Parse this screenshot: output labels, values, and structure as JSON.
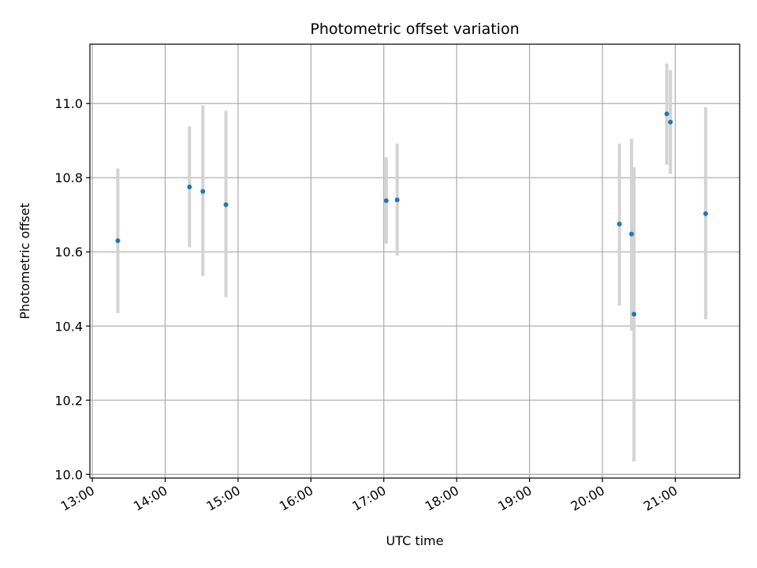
{
  "chart_data": {
    "type": "scatter",
    "title": "Photometric offset variation",
    "xlabel": "UTC time",
    "ylabel": "Photometric offset",
    "x_ticks": [
      "13:00",
      "14:00",
      "15:00",
      "16:00",
      "17:00",
      "18:00",
      "19:00",
      "20:00",
      "21:00"
    ],
    "y_ticks": [
      "10.0",
      "10.2",
      "10.4",
      "10.6",
      "10.8",
      "11.0"
    ],
    "xlim": [
      "12:58",
      "21:53"
    ],
    "ylim": [
      9.99,
      11.16
    ],
    "grid": true,
    "point_color": "#1f77b4",
    "errorbar_color": "#d3d3d3",
    "grid_color": "#b0b0b0",
    "points": [
      {
        "time": "13:21",
        "y": 10.63,
        "err_low": 10.435,
        "err_high": 10.825
      },
      {
        "time": "14:20",
        "y": 10.775,
        "err_low": 10.612,
        "err_high": 10.938
      },
      {
        "time": "14:31",
        "y": 10.763,
        "err_low": 10.535,
        "err_high": 10.995
      },
      {
        "time": "14:50",
        "y": 10.727,
        "err_low": 10.478,
        "err_high": 10.98
      },
      {
        "time": "17:02",
        "y": 10.738,
        "err_low": 10.622,
        "err_high": 10.855
      },
      {
        "time": "17:11",
        "y": 10.74,
        "err_low": 10.59,
        "err_high": 10.892
      },
      {
        "time": "20:14",
        "y": 10.675,
        "err_low": 10.455,
        "err_high": 10.892
      },
      {
        "time": "20:24",
        "y": 10.648,
        "err_low": 10.388,
        "err_high": 10.905
      },
      {
        "time": "20:26",
        "y": 10.432,
        "err_low": 10.035,
        "err_high": 10.828
      },
      {
        "time": "20:53",
        "y": 10.972,
        "err_low": 10.835,
        "err_high": 11.108
      },
      {
        "time": "20:56",
        "y": 10.95,
        "err_low": 10.81,
        "err_high": 11.09
      },
      {
        "time": "21:25",
        "y": 10.703,
        "err_low": 10.418,
        "err_high": 10.99
      }
    ]
  }
}
